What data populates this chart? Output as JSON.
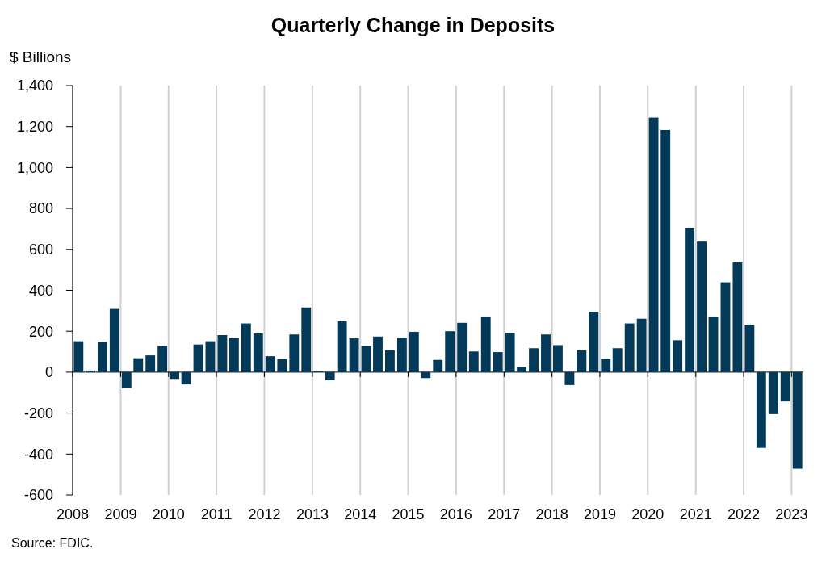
{
  "chart_data": {
    "type": "bar",
    "title": "Quarterly Change in Deposits",
    "ylabel": "$ Billions",
    "annotations": [
      "Source: FDIC."
    ],
    "x": [
      "2008-02-15",
      "2008-05-15",
      "2008-08-15",
      "2008-11-15",
      "2009-02-15",
      "2009-05-15",
      "2009-08-15",
      "2009-11-15",
      "2010-02-15",
      "2010-05-15",
      "2010-08-15",
      "2010-11-15",
      "2011-02-15",
      "2011-05-15",
      "2011-08-15",
      "2011-11-15",
      "2012-02-15",
      "2012-05-15",
      "2012-08-15",
      "2012-11-15",
      "2013-02-15",
      "2013-05-15",
      "2013-08-15",
      "2013-11-15",
      "2014-02-15",
      "2014-05-15",
      "2014-08-15",
      "2014-11-15",
      "2015-02-15",
      "2015-05-15",
      "2015-08-15",
      "2015-11-15",
      "2016-02-15",
      "2016-05-15",
      "2016-08-15",
      "2016-11-15",
      "2017-02-15",
      "2017-05-15",
      "2017-08-15",
      "2017-11-15",
      "2018-02-15",
      "2018-05-15",
      "2018-08-15",
      "2018-11-15",
      "2019-02-15",
      "2019-05-15",
      "2019-08-15",
      "2019-11-15",
      "2020-02-15",
      "2020-05-15",
      "2020-08-15",
      "2020-11-15",
      "2021-02-15",
      "2021-05-15",
      "2021-08-15",
      "2021-11-15",
      "2022-02-15",
      "2022-05-15",
      "2022-08-15",
      "2022-11-15",
      "2023-02-15"
    ],
    "values": [
      151,
      8,
      148,
      309,
      -78,
      68,
      82,
      128,
      -33,
      -60,
      135,
      151,
      181,
      166,
      238,
      189,
      78,
      63,
      184,
      316,
      5,
      -39,
      249,
      165,
      128,
      174,
      107,
      169,
      197,
      -29,
      60,
      200,
      241,
      101,
      272,
      98,
      192,
      26,
      117,
      184,
      132,
      -63,
      106,
      295,
      63,
      117,
      238,
      261,
      1244,
      1183,
      156,
      706,
      638,
      272,
      439,
      536,
      231,
      -370,
      -205,
      -143,
      -472
    ],
    "color": "#033a5a",
    "xlim": [
      "2008-01-01",
      "2023-04-01"
    ],
    "xticks": [
      "2008",
      "2009",
      "2010",
      "2011",
      "2012",
      "2013",
      "2014",
      "2015",
      "2016",
      "2017",
      "2018",
      "2019",
      "2020",
      "2021",
      "2022",
      "2023"
    ],
    "ylim": [
      -600,
      1400
    ],
    "yticks": [
      {
        "value": -600,
        "label": "-600"
      },
      {
        "value": -400,
        "label": "-400"
      },
      {
        "value": -200,
        "label": "-200"
      },
      0,
      200,
      400,
      600,
      800,
      {
        "value": 1000,
        "label": "1,000"
      },
      {
        "value": 1200,
        "label": "1,200"
      },
      {
        "value": 1400,
        "label": "1,400"
      }
    ],
    "grid": "x"
  }
}
